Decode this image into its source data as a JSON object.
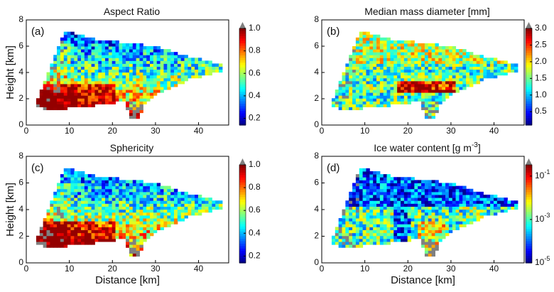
{
  "chart_data": [
    {
      "type": "heatmap",
      "title": "Aspect Ratio",
      "panel_label": "(a)",
      "ylabel": "Height [km]",
      "xlim": [
        0,
        47
      ],
      "ylim": [
        0,
        8
      ],
      "xticks": [
        0,
        10,
        20,
        30,
        40
      ],
      "yticks": [
        0,
        2,
        4,
        6,
        8
      ],
      "colorbar": {
        "clim": [
          0.14,
          1.0
        ],
        "scale": "linear",
        "ticks": [
          0.2,
          0.4,
          0.6,
          0.8,
          {
            "value": 1.0,
            "label": "1.0"
          }
        ]
      }
    },
    {
      "type": "heatmap",
      "title": "Median mass diameter [mm]",
      "panel_label": "(b)",
      "xlim": [
        0,
        47
      ],
      "ylim": [
        0,
        8
      ],
      "xticks": [
        0,
        10,
        20,
        30,
        40
      ],
      "yticks": [
        0,
        2,
        4,
        6,
        8
      ],
      "colorbar": {
        "clim": [
          0.1,
          3.0
        ],
        "scale": "linear",
        "ticks": [
          0.5,
          {
            "value": 1.0,
            "label": "1.0"
          },
          1.5,
          {
            "value": 2.0,
            "label": "2.0"
          },
          2.5,
          {
            "value": 3.0,
            "label": "3.0"
          }
        ]
      }
    },
    {
      "type": "heatmap",
      "title": "Sphericity",
      "panel_label": "(c)",
      "ylabel": "Height [km]",
      "xlabel": "Distance [km]",
      "xlim": [
        0,
        47
      ],
      "ylim": [
        0,
        8
      ],
      "xticks": [
        0,
        10,
        20,
        30,
        40
      ],
      "yticks": [
        0,
        2,
        4,
        6,
        8
      ],
      "colorbar": {
        "clim": [
          0.14,
          1.0
        ],
        "scale": "linear",
        "ticks": [
          0.2,
          0.4,
          0.6,
          0.8,
          {
            "value": 1.0,
            "label": "1.0"
          }
        ]
      }
    },
    {
      "type": "heatmap",
      "title": "Ice water content [g m",
      "title_exponent": "-3",
      "title_end": "]",
      "panel_label": "(d)",
      "xlabel": "Distance [km]",
      "xlim": [
        0,
        47
      ],
      "ylim": [
        0,
        8
      ],
      "xticks": [
        0,
        10,
        20,
        30,
        40
      ],
      "yticks": [
        0,
        2,
        4,
        6,
        8
      ],
      "colorbar": {
        "clim": [
          1e-05,
          0.33
        ],
        "scale": "log",
        "ticks": [
          {
            "value": 1e-05,
            "label": "10",
            "exponent": "-5"
          },
          {
            "value": 0.001,
            "label": "10",
            "exponent": "-3"
          },
          {
            "value": 0.1,
            "label": "10",
            "exponent": "-1"
          }
        ]
      }
    }
  ]
}
